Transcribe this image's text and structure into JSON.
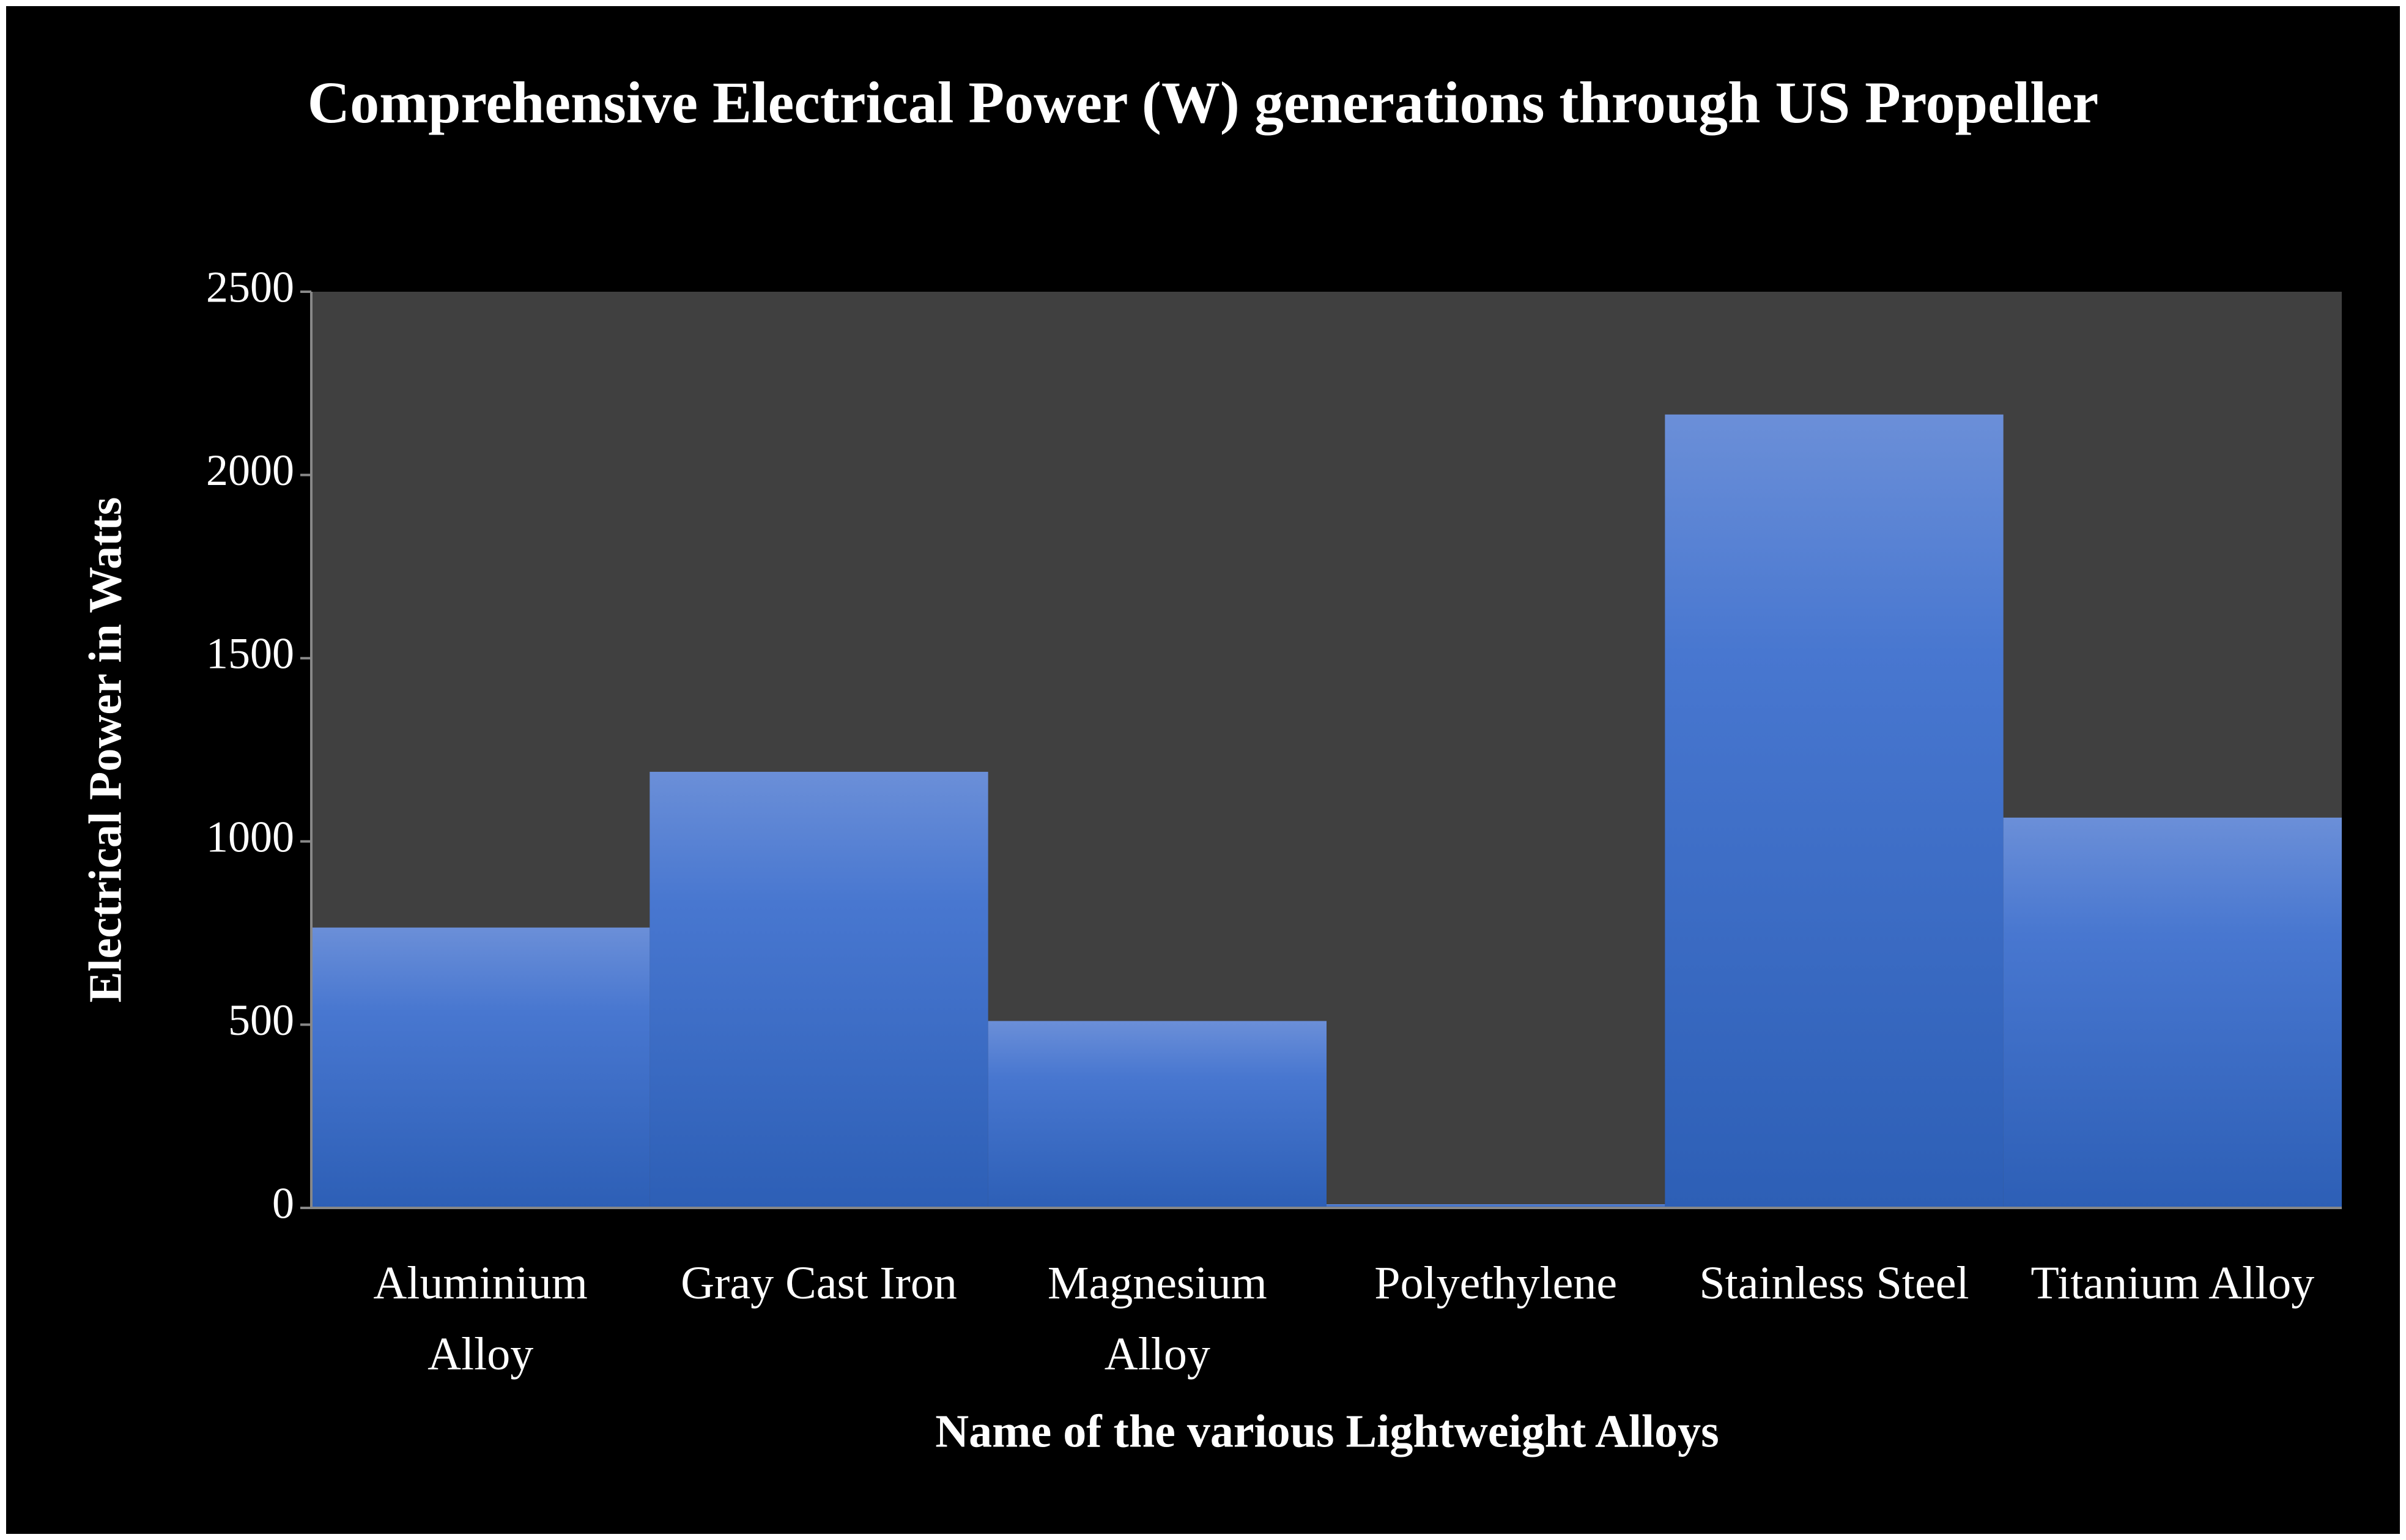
{
  "chart_data": {
    "type": "bar",
    "title": "Comprehensive Electrical Power (W) generations through US Propeller",
    "x_label": "Name of the various Lightweight Alloys",
    "y_label": "Electrical Power in Watts",
    "categories": [
      "Aluminium Alloy",
      "Gray Cast Iron",
      "Magnesium Alloy",
      "Polyethylene",
      "Stainless Steel",
      "Titanium Alloy"
    ],
    "values": [
      765,
      1190,
      510,
      10,
      2165,
      1065
    ],
    "color": "#3f6fc8",
    "ylim": [
      0,
      2500
    ],
    "yticks": [
      0,
      500,
      1000,
      1500,
      2000,
      2500
    ]
  }
}
